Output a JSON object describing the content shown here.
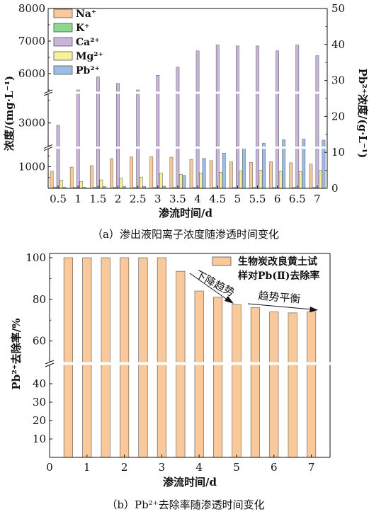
{
  "colors": {
    "Na": "#f9c99b",
    "K": "#8fd78f",
    "Ca": "#c8b4dc",
    "Mg": "#f7f29a",
    "Pb": "#9bbde6",
    "removal": "#f9c99b",
    "stroke": "#555555",
    "axis": "#111111"
  },
  "chart_data": [
    {
      "type": "bar",
      "title": "",
      "xlabel": "渗流时间/d",
      "ylabel": "浓度/(mg·L⁻¹)",
      "y2label": "Pb²⁺浓度/(g·L⁻¹)",
      "caption": "（a）渗出液阳离子浓度随渗透时间变化",
      "categories": [
        "0.5",
        "1",
        "1.5",
        "2",
        "2.5",
        "3",
        "3.5",
        "4",
        "4.5",
        "5",
        "5.5",
        "6",
        "6.5",
        "7"
      ],
      "ylim": [
        0,
        8000
      ],
      "y_axis_break": [
        [
          0,
          1800
        ],
        [
          2500,
          3600
        ],
        [
          5500,
          8000
        ]
      ],
      "yticks": [
        1000,
        3000,
        6000,
        7000,
        8000
      ],
      "y2lim": [
        0,
        50
      ],
      "y2ticks": [
        0,
        10,
        20,
        30,
        40,
        50
      ],
      "legend_position": "top-left",
      "series": [
        {
          "name": "Na⁺",
          "key": "Na",
          "axis": "left",
          "values": [
            800,
            980,
            1050,
            1370,
            1450,
            1460,
            1440,
            1340,
            1280,
            1220,
            1200,
            1230,
            1180,
            1120
          ]
        },
        {
          "name": "K⁺",
          "key": "K",
          "axis": "left",
          "values": [
            60,
            50,
            50,
            50,
            40,
            40,
            40,
            40,
            40,
            40,
            40,
            40,
            40,
            40
          ]
        },
        {
          "name": "Ca²⁺",
          "key": "Ca",
          "axis": "left",
          "values": [
            2950,
            4550,
            5900,
            5700,
            5300,
            5950,
            6200,
            6700,
            6880,
            6850,
            6850,
            6700,
            6880,
            6550
          ]
        },
        {
          "name": "Mg²⁺",
          "key": "Mg",
          "axis": "left",
          "values": [
            380,
            320,
            390,
            470,
            520,
            700,
            640,
            710,
            730,
            800,
            840,
            780,
            780,
            830
          ]
        },
        {
          "name": "Pb²⁺",
          "key": "Pb",
          "axis": "right",
          "values": [
            0.3,
            0.3,
            0.5,
            0.5,
            0.5,
            0.6,
            3.6,
            8.3,
            9.8,
            11.4,
            12.5,
            13.5,
            13.7,
            13.4
          ]
        }
      ]
    },
    {
      "type": "bar",
      "title": "",
      "xlabel": "渗流时间/d",
      "ylabel": "Pb²⁺去除率/%",
      "caption": "（b）Pb²⁺去除率随渗透时间变化",
      "x": [
        0.5,
        1,
        1.5,
        2,
        2.5,
        3,
        3.5,
        4,
        4.5,
        5,
        5.5,
        6,
        6.5,
        7
      ],
      "xticks": [
        0,
        1,
        2,
        3,
        4,
        5,
        6,
        7
      ],
      "xlim": [
        0,
        7.5
      ],
      "ylim": [
        0,
        100
      ],
      "y_axis_break": [
        [
          0,
          50
        ],
        [
          50,
          100
        ]
      ],
      "yticks": [
        10,
        20,
        30,
        40,
        60,
        80,
        100
      ],
      "legend_position": "top-right",
      "series": [
        {
          "name": "生物炭改良黄土试样对Pb(Ⅱ)去除率",
          "legend_lines": [
            "生物炭改良黄土试",
            "样对Pb(Ⅱ)去除率"
          ],
          "values": [
            100,
            100,
            100,
            100,
            100,
            100,
            93.5,
            84,
            81,
            77.5,
            76,
            74,
            73.5,
            74
          ]
        }
      ],
      "annotations": [
        {
          "text": "下降趋势"
        },
        {
          "text": "趋势平衡"
        }
      ]
    }
  ]
}
